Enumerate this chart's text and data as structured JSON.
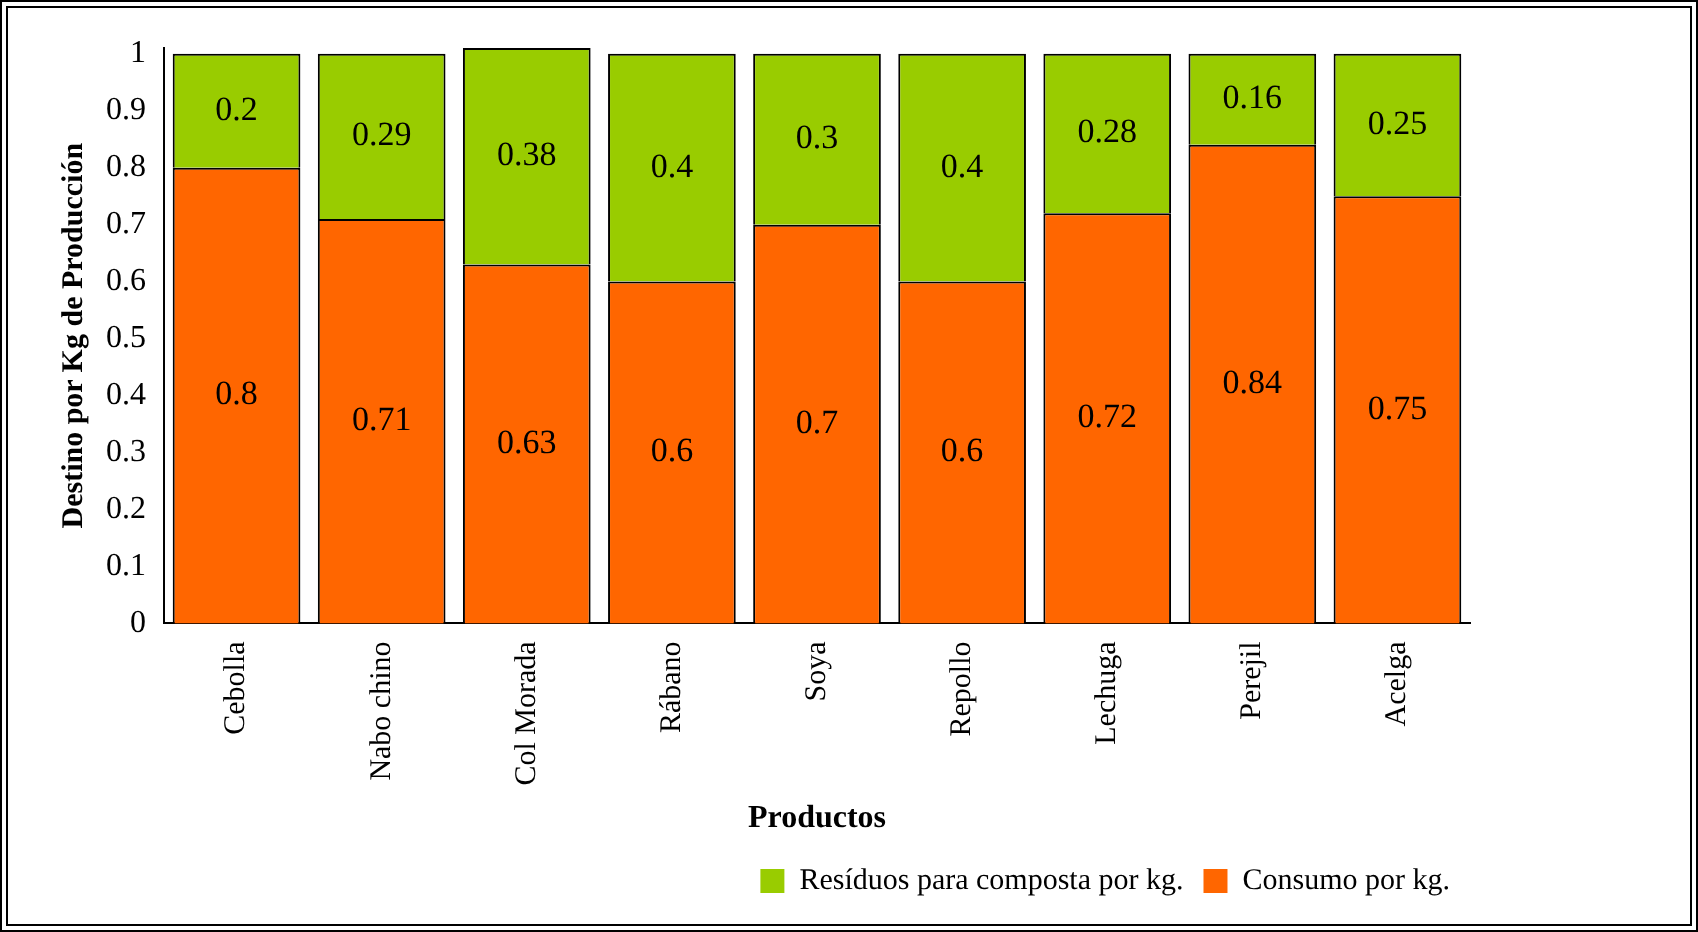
{
  "chart_data": {
    "type": "bar",
    "stacked": true,
    "ylabel": "Destino por Kg de Producción",
    "xlabel": "Productos",
    "categories": [
      "Cebolla",
      "Nabo chino",
      "Col Morada",
      "Rábano",
      "Soya",
      "Repollo",
      "Lechuga",
      "Perejil",
      "Acelga"
    ],
    "series": [
      {
        "name": "Consumo por kg.",
        "color": "#ff6600",
        "values": [
          0.8,
          0.71,
          0.63,
          0.6,
          0.7,
          0.6,
          0.72,
          0.84,
          0.75
        ]
      },
      {
        "name": "Resíduos para composta por kg.",
        "color": "#99cc00",
        "values": [
          0.2,
          0.29,
          0.38,
          0.4,
          0.3,
          0.4,
          0.28,
          0.16,
          0.25
        ]
      }
    ],
    "ylim": [
      0,
      1.01
    ],
    "yticks": [
      0,
      0.1,
      0.2,
      0.3,
      0.4,
      0.5,
      0.6,
      0.7,
      0.8,
      0.9,
      1
    ],
    "data_labels": true,
    "legend": "bottom right"
  }
}
